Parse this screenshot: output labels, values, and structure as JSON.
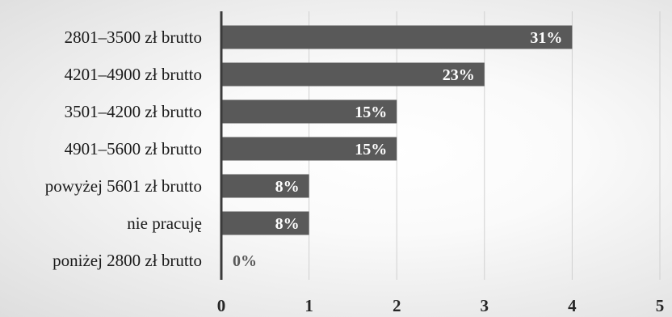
{
  "chart_data": {
    "type": "bar",
    "orientation": "horizontal",
    "categories": [
      "2801–3500 zł brutto",
      "4201–4900 zł brutto",
      "3501–4200 zł brutto",
      "4901–5600 zł brutto",
      "powyżej 5601 zł brutto",
      "nie pracuję",
      "poniżej 2800 zł brutto"
    ],
    "values": [
      4,
      3,
      2,
      2,
      1,
      1,
      0
    ],
    "data_labels": [
      "31%",
      "23%",
      "15%",
      "15%",
      "8%",
      "8%",
      "0%"
    ],
    "x_ticks": [
      "0",
      "1",
      "2",
      "3",
      "4",
      "5"
    ],
    "xlim": [
      0,
      5
    ],
    "title": "",
    "xlabel": "",
    "ylabel": "",
    "grid": true,
    "legend": "none",
    "colors": {
      "bar": "#595959",
      "label_inside": "#ffffff",
      "label_outside": "#595959",
      "gridline": "#d0d0d0",
      "axis": "#3a3a3a"
    }
  }
}
